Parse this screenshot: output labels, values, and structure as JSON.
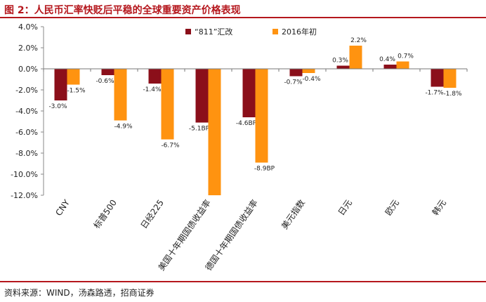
{
  "header": {
    "title": "图 2：人民币汇率快贬后平稳的全球重要资产价格表现"
  },
  "footer": {
    "source": "资料来源：WIND，汤森路透，招商证券"
  },
  "colors": {
    "s1": "#8b0f1a",
    "s2": "#ff9310",
    "accent": "#b5171d"
  },
  "chart_data": {
    "type": "bar",
    "title": "",
    "xlabel": "",
    "ylabel": "",
    "ylim": [
      -12,
      4
    ],
    "yticks": [
      "4.0%",
      "2.0%",
      "0.0%",
      "-2.0%",
      "-4.0%",
      "-6.0%",
      "-8.0%",
      "-10.0%",
      "-12.0%"
    ],
    "legend_position": "top-right",
    "categories": [
      "CNY",
      "标普500",
      "日经225",
      "美国十年期国债收益率",
      "德国十年期国债收益率",
      "美元指数",
      "日元",
      "欧元",
      "韩元"
    ],
    "series": [
      {
        "name": "“811”汇改",
        "values": [
          -3.0,
          -0.6,
          -1.4,
          -5.1,
          -4.6,
          -0.7,
          0.3,
          0.4,
          -1.7
        ],
        "labels": [
          "-3.0%",
          "-0.6%",
          "-1.4%",
          "-5.1BP",
          "-4.6BP",
          "-0.7%",
          "0.3%",
          "0.4%",
          "-1.7%"
        ]
      },
      {
        "name": "2016年初",
        "values": [
          -1.5,
          -4.9,
          -6.7,
          -12.0,
          -8.9,
          -0.4,
          2.2,
          0.7,
          -1.8
        ],
        "labels": [
          "-1.5%",
          "-4.9%",
          "-6.7%",
          "",
          "-8.9BP",
          "-0.4%",
          "2.2%",
          "0.7%",
          "-1.8%"
        ]
      }
    ]
  }
}
